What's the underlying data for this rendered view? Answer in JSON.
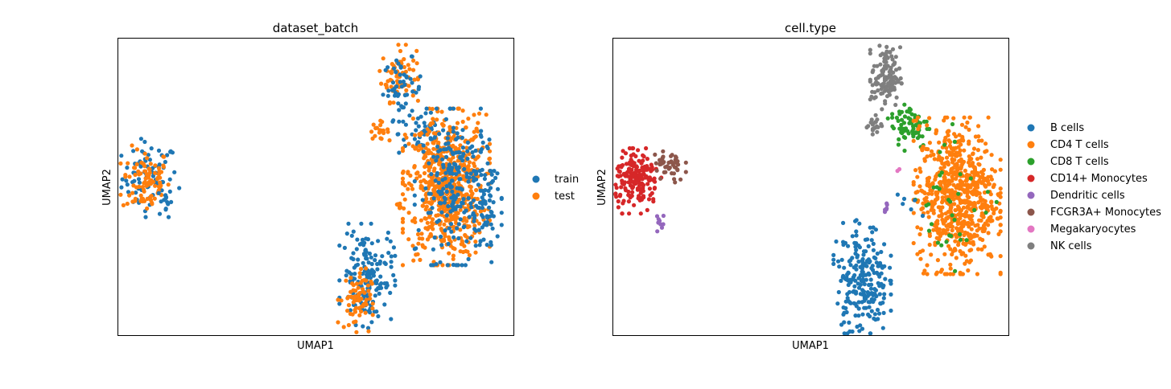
{
  "chart_data": [
    {
      "type": "scatter",
      "title": "dataset_batch",
      "xlabel": "UMAP1",
      "ylabel": "UMAP2",
      "xlim": [
        0,
        100
      ],
      "ylim": [
        0,
        100
      ],
      "grid": false,
      "ticks": false,
      "legend_placement": "right",
      "series": [
        {
          "name": "train",
          "color": "#1f77b4"
        },
        {
          "name": "test",
          "color": "#ff7f0e"
        }
      ],
      "clusters": [
        {
          "series": "train",
          "x": 8,
          "y": 53,
          "sx": 3.5,
          "sy": 6,
          "n": 80
        },
        {
          "series": "test",
          "x": 7,
          "y": 52,
          "sx": 3,
          "sy": 5.5,
          "n": 90
        },
        {
          "series": "train",
          "x": 12,
          "y": 45,
          "sx": 0.8,
          "sy": 2.5,
          "n": 10
        },
        {
          "series": "test",
          "x": 71,
          "y": 88,
          "sx": 2.2,
          "sy": 4.5,
          "n": 70
        },
        {
          "series": "train",
          "x": 72,
          "y": 83,
          "sx": 2.5,
          "sy": 5,
          "n": 50
        },
        {
          "series": "test",
          "x": 66,
          "y": 69,
          "sx": 1.2,
          "sy": 1.5,
          "n": 20
        },
        {
          "series": "train",
          "x": 77,
          "y": 68,
          "sx": 3,
          "sy": 3.5,
          "n": 40
        },
        {
          "series": "test",
          "x": 83,
          "y": 50,
          "sx": 5,
          "sy": 12,
          "n": 650
        },
        {
          "series": "train",
          "x": 86,
          "y": 50,
          "sx": 5,
          "sy": 12,
          "n": 250
        },
        {
          "series": "train",
          "x": 93,
          "y": 40,
          "sx": 1.3,
          "sy": 7,
          "n": 40
        },
        {
          "series": "test",
          "x": 71,
          "y": 43,
          "sx": 0.6,
          "sy": 1.3,
          "n": 6
        },
        {
          "series": "train",
          "x": 63,
          "y": 20,
          "sx": 3.2,
          "sy": 8,
          "n": 160
        },
        {
          "series": "test",
          "x": 60,
          "y": 12,
          "sx": 2,
          "sy": 5,
          "n": 70
        }
      ]
    },
    {
      "type": "scatter",
      "title": "cell.type",
      "xlabel": "UMAP1",
      "ylabel": "UMAP2",
      "xlim": [
        0,
        100
      ],
      "ylim": [
        0,
        100
      ],
      "grid": false,
      "ticks": false,
      "legend_placement": "right",
      "series": [
        {
          "name": "B cells",
          "color": "#1f77b4"
        },
        {
          "name": "CD4 T cells",
          "color": "#ff7f0e"
        },
        {
          "name": "CD8 T cells",
          "color": "#2ca02c"
        },
        {
          "name": "CD14+ Monocytes",
          "color": "#d62728"
        },
        {
          "name": "Dendritic cells",
          "color": "#9467bd"
        },
        {
          "name": "FCGR3A+ Monocytes",
          "color": "#8c564b"
        },
        {
          "name": "Megakaryocytes",
          "color": "#e377c2"
        },
        {
          "name": "NK cells",
          "color": "#7f7f7f"
        }
      ],
      "clusters": [
        {
          "series": "NK cells",
          "x": 69,
          "y": 87,
          "sx": 1.8,
          "sy": 5,
          "n": 120
        },
        {
          "series": "NK cells",
          "x": 66,
          "y": 71,
          "sx": 1,
          "sy": 1.5,
          "n": 20
        },
        {
          "series": "CD8 T cells",
          "x": 75,
          "y": 71,
          "sx": 2.5,
          "sy": 4,
          "n": 70
        },
        {
          "series": "CD4 T cells",
          "x": 87,
          "y": 47,
          "sx": 5,
          "sy": 12,
          "n": 700
        },
        {
          "series": "CD8 T cells",
          "x": 86,
          "y": 48,
          "sx": 5,
          "sy": 12,
          "n": 35
        },
        {
          "series": "B cells",
          "x": 63,
          "y": 19,
          "sx": 3.3,
          "sy": 9,
          "n": 230
        },
        {
          "series": "B cells",
          "x": 75,
          "y": 43,
          "sx": 1.5,
          "sy": 2,
          "n": 6
        },
        {
          "series": "CD14+ Monocytes",
          "x": 6,
          "y": 52,
          "sx": 2.8,
          "sy": 5,
          "n": 180
        },
        {
          "series": "FCGR3A+ Monocytes",
          "x": 14,
          "y": 57,
          "sx": 2,
          "sy": 3,
          "n": 45
        },
        {
          "series": "Dendritic cells",
          "x": 12,
          "y": 38,
          "sx": 0.6,
          "sy": 2,
          "n": 10
        },
        {
          "series": "Dendritic cells",
          "x": 69,
          "y": 43,
          "sx": 0.3,
          "sy": 1,
          "n": 6
        },
        {
          "series": "Megakaryocytes",
          "x": 72,
          "y": 55,
          "sx": 0.3,
          "sy": 0.5,
          "n": 2
        }
      ]
    }
  ]
}
